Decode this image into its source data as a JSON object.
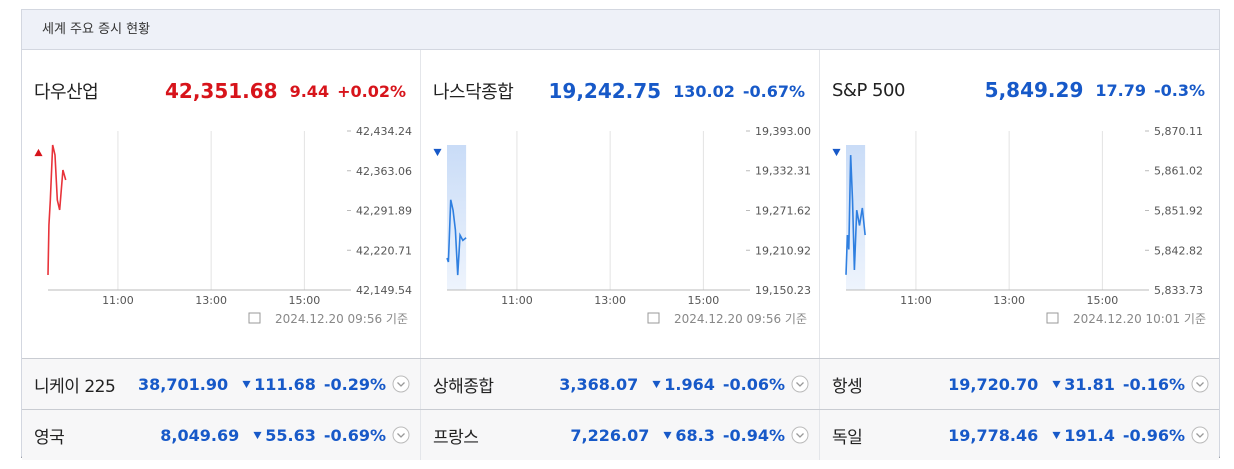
{
  "header": {
    "title": "세계 주요 증시 현황"
  },
  "colors": {
    "up": "#d7141b",
    "down": "#1759c8"
  },
  "chart_data": [
    {
      "type": "line",
      "title": "다우산업",
      "price": "42,351.68",
      "direction": "up",
      "change": "9.44",
      "change_pct": "+0.02%",
      "timestamp": "2024.12.20 09:56 기준",
      "x": [
        9.5,
        9.52,
        9.55,
        9.6,
        9.65,
        9.7,
        9.75,
        9.82,
        9.88
      ],
      "series": [
        {
          "color": "#e8333a",
          "values": [
            42176.4,
            42265.9,
            42310.7,
            42409.2,
            42391.3,
            42310.7,
            42292.8,
            42364.4,
            42346.5
          ]
        }
      ],
      "xlim": [
        9.5,
        16
      ],
      "xticks": [
        {
          "value": 11,
          "label": "11:00"
        },
        {
          "value": 13,
          "label": "13:00"
        },
        {
          "value": 15,
          "label": "15:00"
        }
      ],
      "ylim": [
        42149.54,
        42434.24
      ],
      "yticks": [
        {
          "value": 42149.54,
          "label": "42,149.54"
        },
        {
          "value": 42220.71,
          "label": "42,220.71"
        },
        {
          "value": 42291.89,
          "label": "42,291.89"
        },
        {
          "value": 42363.06,
          "label": "42,363.06"
        },
        {
          "value": 42434.24,
          "label": "42,434.24"
        }
      ],
      "shade": false
    },
    {
      "type": "line",
      "title": "나스닥종합",
      "price": "19,242.75",
      "direction": "down",
      "change": "130.02",
      "change_pct": "-0.67%",
      "timestamp": "2024.12.20 09:56 기준",
      "x": [
        9.5,
        9.53,
        9.58,
        9.63,
        9.68,
        9.73,
        9.78,
        9.84,
        9.91
      ],
      "series": [
        {
          "color": "#2f7fe0",
          "values": [
            19199,
            19193,
            19288,
            19272,
            19242,
            19173,
            19234,
            19226,
            19230
          ]
        }
      ],
      "xlim": [
        9.5,
        16
      ],
      "xticks": [
        {
          "value": 11,
          "label": "11:00"
        },
        {
          "value": 13,
          "label": "13:00"
        },
        {
          "value": 15,
          "label": "15:00"
        }
      ],
      "ylim": [
        19150.23,
        19393.0
      ],
      "yticks": [
        {
          "value": 19150.23,
          "label": "19,150.23"
        },
        {
          "value": 19210.92,
          "label": "19,210.92"
        },
        {
          "value": 19271.62,
          "label": "19,271.62"
        },
        {
          "value": 19332.31,
          "label": "19,332.31"
        },
        {
          "value": 19393.0,
          "label": "19,393.00"
        }
      ],
      "shade": true
    },
    {
      "type": "line",
      "title": "S&P 500",
      "price": "5,849.29",
      "direction": "down",
      "change": "17.79",
      "change_pct": "-0.3%",
      "timestamp": "2024.12.20 10:01 기준",
      "x": [
        9.5,
        9.53,
        9.56,
        9.6,
        9.64,
        9.68,
        9.73,
        9.79,
        9.85,
        9.91
      ],
      "series": [
        {
          "color": "#2f7fe0",
          "values": [
            5837.2,
            5846.3,
            5843.0,
            5864.6,
            5854.3,
            5838.3,
            5852.0,
            5848.5,
            5852.5,
            5846.3
          ]
        }
      ],
      "xlim": [
        9.5,
        16
      ],
      "xticks": [
        {
          "value": 11,
          "label": "11:00"
        },
        {
          "value": 13,
          "label": "13:00"
        },
        {
          "value": 15,
          "label": "15:00"
        }
      ],
      "ylim": [
        5833.73,
        5870.11
      ],
      "yticks": [
        {
          "value": 5833.73,
          "label": "5,833.73"
        },
        {
          "value": 5842.82,
          "label": "5,842.82"
        },
        {
          "value": 5851.92,
          "label": "5,851.92"
        },
        {
          "value": 5861.02,
          "label": "5,861.02"
        },
        {
          "value": 5870.11,
          "label": "5,870.11"
        }
      ],
      "shade": true
    }
  ],
  "table": {
    "rows": [
      [
        {
          "name": "니케이 225",
          "price": "38,701.90",
          "direction": "down",
          "change": "111.68",
          "change_pct": "-0.29%"
        },
        {
          "name": "상해종합",
          "price": "3,368.07",
          "direction": "down",
          "change": "1.964",
          "change_pct": "-0.06%"
        },
        {
          "name": "항셍",
          "price": "19,720.70",
          "direction": "down",
          "change": "31.81",
          "change_pct": "-0.16%"
        }
      ],
      [
        {
          "name": "영국",
          "price": "8,049.69",
          "direction": "down",
          "change": "55.63",
          "change_pct": "-0.69%"
        },
        {
          "name": "프랑스",
          "price": "7,226.07",
          "direction": "down",
          "change": "68.3",
          "change_pct": "-0.94%"
        },
        {
          "name": "독일",
          "price": "19,778.46",
          "direction": "down",
          "change": "191.4",
          "change_pct": "-0.96%"
        }
      ]
    ]
  }
}
